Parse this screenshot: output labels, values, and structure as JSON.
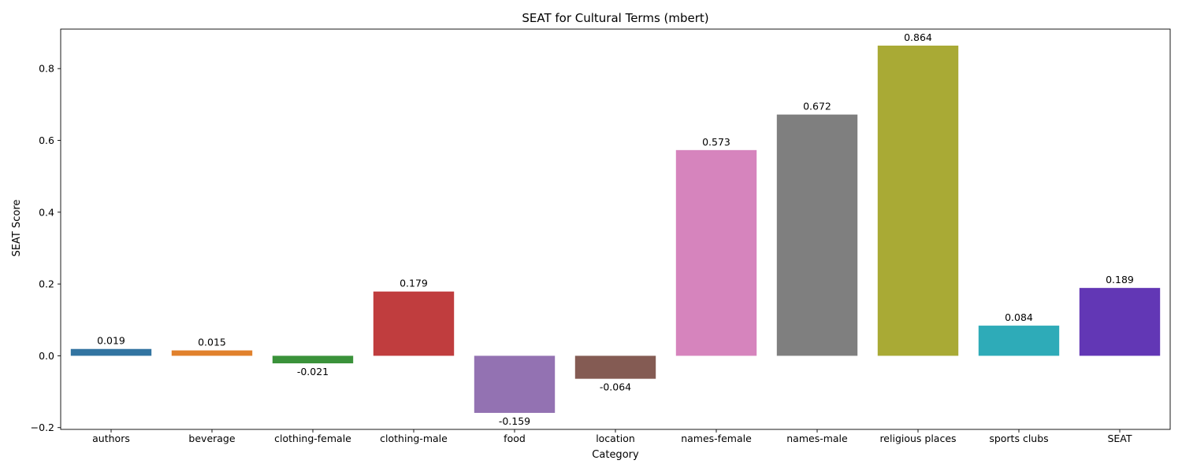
{
  "chart_data": {
    "type": "bar",
    "title": "SEAT for Cultural Terms (mbert)",
    "xlabel": "Category",
    "ylabel": "SEAT Score",
    "ylim": [
      -0.205,
      0.91
    ],
    "yticks": [
      -0.2,
      0.0,
      0.2,
      0.4,
      0.6,
      0.8
    ],
    "ytick_labels": [
      "−0.2",
      "0.0",
      "0.2",
      "0.4",
      "0.6",
      "0.8"
    ],
    "grid": false,
    "categories": [
      "authors",
      "beverage",
      "clothing-female",
      "clothing-male",
      "food",
      "location",
      "names-female",
      "names-male",
      "religious places",
      "sports clubs",
      "SEAT"
    ],
    "values": [
      0.019,
      0.015,
      -0.021,
      0.179,
      -0.159,
      -0.064,
      0.573,
      0.672,
      0.864,
      0.084,
      0.189
    ],
    "value_labels": [
      "0.019",
      "0.015",
      "-0.021",
      "0.179",
      "-0.159",
      "-0.064",
      "0.573",
      "0.672",
      "0.864",
      "0.084",
      "0.189"
    ],
    "colors": [
      "#3274a1",
      "#e1812c",
      "#3a923a",
      "#c03d3e",
      "#9372b2",
      "#845b53",
      "#d684bd",
      "#7f7f7f",
      "#a9aa35",
      "#2eabb8",
      "#6237b5"
    ]
  }
}
